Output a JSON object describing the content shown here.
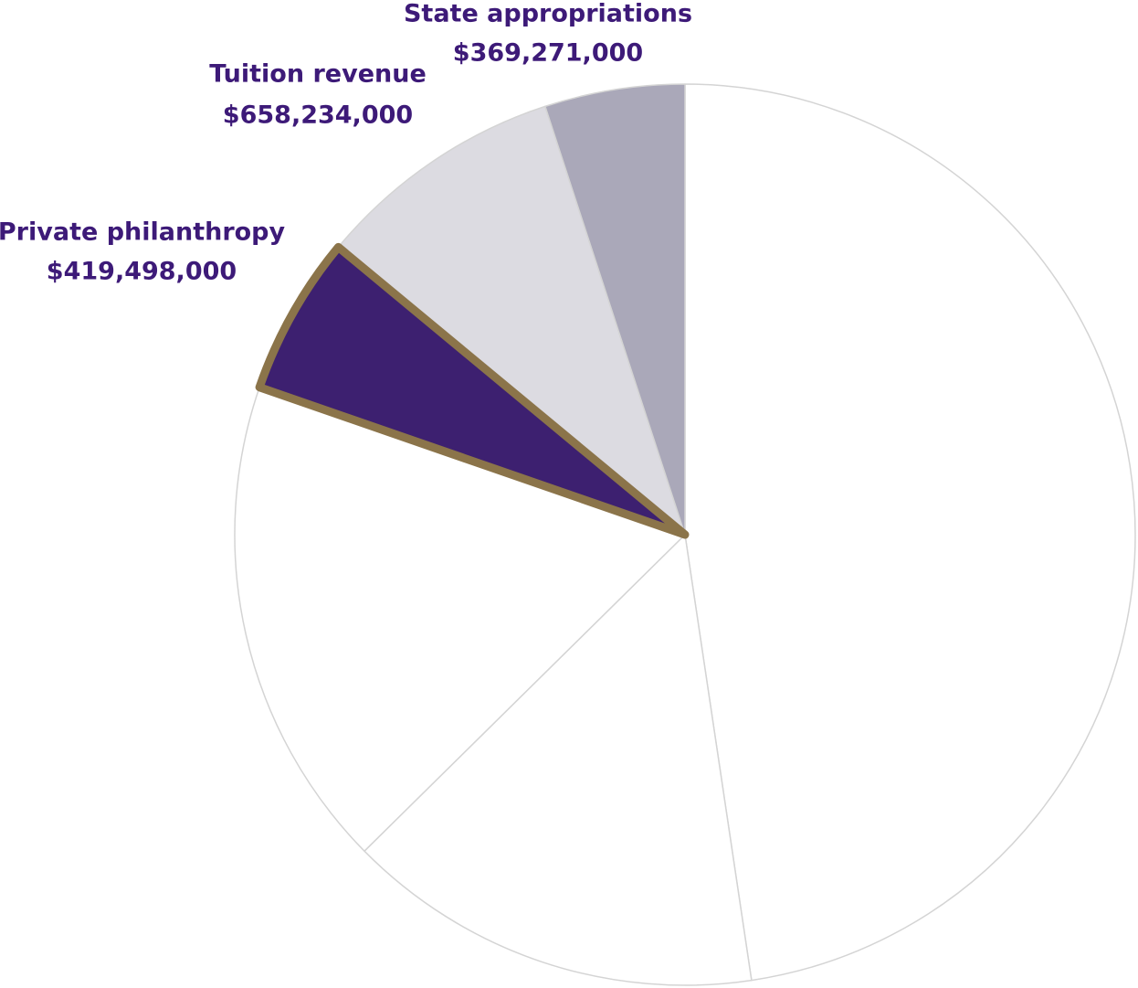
{
  "chart_data": {
    "type": "pie",
    "start_angle_deg": 0,
    "direction": "clockwise",
    "slices": [
      {
        "label": "",
        "value_label": "",
        "value": 3500000000,
        "fill": "#ffffff",
        "stroke": "#d4d4d4",
        "labeled": false,
        "highlight": false
      },
      {
        "label": "",
        "value_label": "",
        "value": 1100000000,
        "fill": "#ffffff",
        "stroke": "#d4d4d4",
        "labeled": false,
        "highlight": false
      },
      {
        "label": "",
        "value_label": "",
        "value": 1300000000,
        "fill": "#ffffff",
        "stroke": "#d4d4d4",
        "labeled": false,
        "highlight": false
      },
      {
        "label": "Private philanthropy",
        "value_label": "$419,498,000",
        "value": 419498000,
        "fill": "#3d2070",
        "stroke": "#8b744a",
        "labeled": true,
        "highlight": true
      },
      {
        "label": "Tuition revenue",
        "value_label": "$658,234,000",
        "value": 658234000,
        "fill": "#dcdbe1",
        "stroke": "#d4d4d4",
        "labeled": true,
        "highlight": false
      },
      {
        "label": "State appropriations",
        "value_label": "$369,271,000",
        "value": 369271000,
        "fill": "#aaa8b9",
        "stroke": "#d4d4d4",
        "labeled": true,
        "highlight": false
      }
    ],
    "label_color": "#3d1a78"
  }
}
